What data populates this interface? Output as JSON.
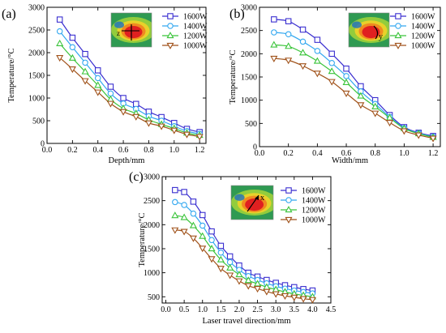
{
  "colors": {
    "1600W": "#3a2fd0",
    "1400W": "#33a8f0",
    "1200W": "#3ac43a",
    "1000W": "#a0521a"
  },
  "chart_data": [
    {
      "panel_label": "(a)",
      "type": "line",
      "xlabel": "Depth/mm",
      "ylabel": "Temperature/°C",
      "xlim": [
        0.0,
        1.25
      ],
      "ylim": [
        0,
        3000
      ],
      "xticks": [
        "0.0",
        "0.2",
        "0.4",
        "0.6",
        "0.8",
        "1.0",
        "1.2"
      ],
      "xtick_values": [
        0.0,
        0.2,
        0.4,
        0.6,
        0.8,
        1.0,
        1.2
      ],
      "yticks": [
        "0",
        "500",
        "1000",
        "1500",
        "2000",
        "2500",
        "3000"
      ],
      "ytick_values": [
        0,
        500,
        1000,
        1500,
        2000,
        2500,
        3000
      ],
      "x": [
        0.1,
        0.2,
        0.3,
        0.4,
        0.5,
        0.6,
        0.7,
        0.8,
        0.9,
        1.0,
        1.1,
        1.2
      ],
      "legend_position": "top-right",
      "inset_label": "z",
      "series": [
        {
          "name": "1600W",
          "marker": "square",
          "values": [
            2730,
            2330,
            1970,
            1610,
            1250,
            1000,
            870,
            700,
            580,
            450,
            320,
            250
          ]
        },
        {
          "name": "1400W",
          "marker": "circle",
          "values": [
            2470,
            2120,
            1780,
            1440,
            1100,
            880,
            760,
            600,
            500,
            380,
            270,
            210
          ]
        },
        {
          "name": "1200W",
          "marker": "triangle-up",
          "values": [
            2200,
            1880,
            1580,
            1280,
            970,
            770,
            660,
            520,
            420,
            330,
            230,
            180
          ]
        },
        {
          "name": "1000W",
          "marker": "triangle-down",
          "values": [
            1890,
            1640,
            1380,
            1130,
            880,
            700,
            590,
            450,
            380,
            290,
            200,
            150
          ]
        }
      ]
    },
    {
      "panel_label": "(b)",
      "type": "line",
      "xlabel": "Width/mm",
      "ylabel": "Temperature/°C",
      "xlim": [
        0.0,
        1.25
      ],
      "ylim": [
        0,
        3000
      ],
      "xticks": [
        "0.0",
        "0.2",
        "0.4",
        "0.6",
        "0.8",
        "1.0",
        "1.2"
      ],
      "xtick_values": [
        0.0,
        0.2,
        0.4,
        0.6,
        0.8,
        1.0,
        1.2
      ],
      "yticks": [
        "0",
        "500",
        "1000",
        "1500",
        "2000",
        "2500",
        "3000"
      ],
      "ytick_values": [
        0,
        500,
        1000,
        1500,
        2000,
        2500,
        3000
      ],
      "x": [
        0.1,
        0.2,
        0.3,
        0.4,
        0.5,
        0.6,
        0.7,
        0.8,
        0.9,
        1.0,
        1.1,
        1.2
      ],
      "legend_position": "top-right",
      "inset_label": "y",
      "series": [
        {
          "name": "1600W",
          "marker": "square",
          "values": [
            2740,
            2700,
            2520,
            2300,
            2000,
            1680,
            1300,
            1000,
            680,
            420,
            300,
            230
          ]
        },
        {
          "name": "1400W",
          "marker": "circle",
          "values": [
            2460,
            2420,
            2260,
            2060,
            1800,
            1520,
            1190,
            920,
            640,
            400,
            290,
            210
          ]
        },
        {
          "name": "1200W",
          "marker": "triangle-up",
          "values": [
            2190,
            2160,
            2020,
            1840,
            1620,
            1380,
            1090,
            860,
            620,
            390,
            280,
            200
          ]
        },
        {
          "name": "1000W",
          "marker": "triangle-down",
          "values": [
            1900,
            1860,
            1740,
            1580,
            1400,
            1150,
            900,
            720,
            520,
            340,
            250,
            180
          ]
        }
      ]
    },
    {
      "panel_label": "(c)",
      "type": "line",
      "xlabel": "Laser travel direction/mm",
      "ylabel": "Temperature/°C",
      "xlim": [
        -0.1,
        4.5
      ],
      "ylim": [
        370,
        3000
      ],
      "xticks": [
        "0.0",
        "0.5",
        "1.0",
        "1.5",
        "2.0",
        "2.5",
        "3.0",
        "3.5",
        "4.0",
        "4.5"
      ],
      "xtick_values": [
        0.0,
        0.5,
        1.0,
        1.5,
        2.0,
        2.5,
        3.0,
        3.5,
        4.0,
        4.5
      ],
      "yticks": [
        "500",
        "1000",
        "1500",
        "2000",
        "2500",
        "3000"
      ],
      "ytick_values": [
        500,
        1000,
        1500,
        2000,
        2500,
        3000
      ],
      "x": [
        0.25,
        0.5,
        0.75,
        1.0,
        1.25,
        1.5,
        1.75,
        2.0,
        2.25,
        2.5,
        2.75,
        3.0,
        3.25,
        3.5,
        3.75,
        4.0
      ],
      "legend_position": "top-right",
      "inset_label": "x",
      "series": [
        {
          "name": "1600W",
          "marker": "square",
          "values": [
            2720,
            2680,
            2480,
            2200,
            1860,
            1560,
            1340,
            1150,
            1000,
            920,
            850,
            790,
            740,
            700,
            660,
            630
          ]
        },
        {
          "name": "1400W",
          "marker": "circle",
          "values": [
            2470,
            2410,
            2230,
            1980,
            1680,
            1420,
            1220,
            1060,
            930,
            850,
            780,
            720,
            670,
            630,
            600,
            570
          ]
        },
        {
          "name": "1200W",
          "marker": "triangle-up",
          "values": [
            2190,
            2150,
            1980,
            1760,
            1500,
            1270,
            1100,
            960,
            840,
            770,
            700,
            650,
            600,
            560,
            530,
            500
          ]
        },
        {
          "name": "1000W",
          "marker": "triangle-down",
          "values": [
            1890,
            1860,
            1720,
            1510,
            1290,
            1090,
            950,
            830,
            730,
            670,
            610,
            560,
            520,
            490,
            460,
            440
          ]
        }
      ]
    }
  ]
}
